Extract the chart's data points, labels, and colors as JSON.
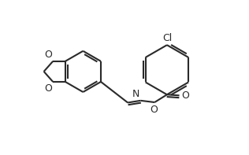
{
  "background_color": "#ffffff",
  "line_color": "#2a2a2a",
  "line_width": 1.5,
  "dbo": 0.013,
  "label_fontsize": 9.0,
  "text_color": "#2a2a2a",
  "cl_label": "Cl",
  "n_label": "N",
  "o_top_label": "O",
  "o_bot_label": "O",
  "o_link_label": "O",
  "o_carbonyl_label": "O",
  "figsize": [
    3.16,
    1.97
  ],
  "dpi": 100,
  "xlim": [
    0.0,
    1.0
  ],
  "ylim": [
    0.05,
    0.95
  ]
}
